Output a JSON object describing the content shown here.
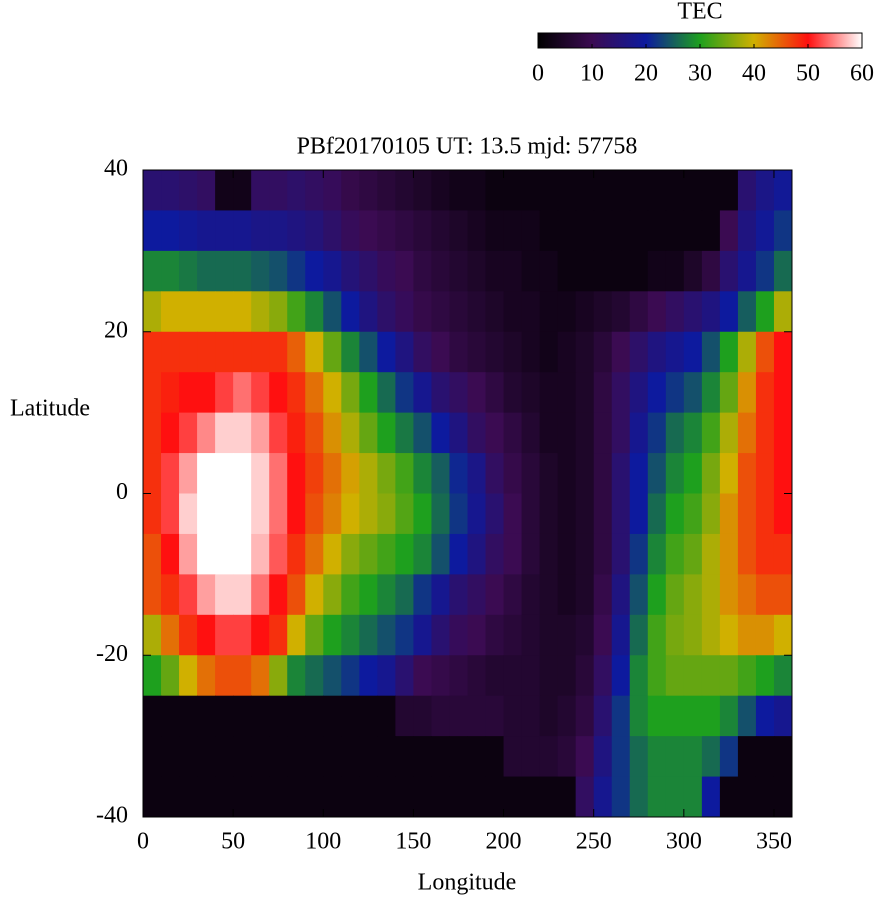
{
  "chart_data": {
    "type": "heatmap",
    "title": "PBf20170105  UT: 13.5  mjd: 57758",
    "xlabel": "Longitude",
    "ylabel": "Latitude",
    "x": [
      5,
      15,
      25,
      35,
      45,
      55,
      65,
      75,
      85,
      95,
      105,
      115,
      125,
      135,
      145,
      155,
      165,
      175,
      185,
      195,
      205,
      215,
      225,
      235,
      245,
      255,
      265,
      275,
      285,
      295,
      305,
      315,
      325,
      335,
      345,
      355
    ],
    "y": [
      37.5,
      32.5,
      27.5,
      22.5,
      17.5,
      12.5,
      7.5,
      2.5,
      -2.5,
      -7.5,
      -12.5,
      -17.5,
      -22.5,
      -27.5,
      -32.5,
      -37.5
    ],
    "z": [
      [
        14,
        14,
        13,
        12,
        3,
        3,
        12,
        12,
        13,
        12,
        11,
        9,
        8,
        7,
        6,
        5,
        4,
        3,
        3,
        2,
        2,
        2,
        2,
        2,
        2,
        2,
        2,
        2,
        2,
        2,
        2,
        2,
        2,
        14,
        17,
        19
      ],
      [
        20,
        20,
        19,
        18,
        18,
        18,
        17,
        17,
        16,
        15,
        13,
        11,
        10,
        9,
        8,
        7,
        6,
        5,
        4,
        3,
        3,
        3,
        2,
        2,
        2,
        2,
        2,
        2,
        2,
        2,
        2,
        2,
        10,
        16,
        19,
        22
      ],
      [
        28,
        28,
        27,
        26,
        26,
        26,
        25,
        24,
        22,
        20,
        18,
        15,
        13,
        11,
        10,
        8,
        7,
        6,
        5,
        4,
        4,
        3,
        3,
        2,
        2,
        2,
        2,
        2,
        3,
        3,
        5,
        8,
        14,
        18,
        22,
        26
      ],
      [
        38,
        40,
        40,
        40,
        40,
        40,
        38,
        36,
        32,
        28,
        24,
        20,
        16,
        13,
        11,
        9,
        8,
        7,
        6,
        5,
        4,
        4,
        3,
        3,
        4,
        5,
        6,
        8,
        10,
        12,
        14,
        16,
        20,
        25,
        30,
        38
      ],
      [
        48,
        48,
        48,
        48,
        48,
        48,
        48,
        48,
        45,
        40,
        34,
        28,
        24,
        20,
        16,
        12,
        10,
        8,
        7,
        6,
        5,
        4,
        3,
        4,
        5,
        7,
        10,
        13,
        16,
        18,
        20,
        24,
        30,
        38,
        46,
        50
      ],
      [
        48,
        49,
        50,
        50,
        52,
        54,
        52,
        50,
        48,
        44,
        40,
        35,
        30,
        26,
        22,
        18,
        14,
        12,
        10,
        8,
        6,
        5,
        4,
        4,
        5,
        8,
        12,
        16,
        20,
        22,
        24,
        28,
        34,
        42,
        48,
        50
      ],
      [
        48,
        50,
        52,
        55,
        58,
        58,
        56,
        52,
        49,
        46,
        42,
        38,
        34,
        30,
        27,
        24,
        20,
        16,
        12,
        10,
        8,
        6,
        4,
        4,
        5,
        8,
        12,
        18,
        22,
        26,
        28,
        32,
        38,
        44,
        48,
        50
      ],
      [
        48,
        52,
        56,
        60,
        60,
        60,
        58,
        54,
        50,
        47,
        44,
        41,
        38,
        35,
        32,
        28,
        25,
        21,
        17,
        12,
        9,
        7,
        5,
        4,
        5,
        8,
        14,
        20,
        24,
        28,
        30,
        35,
        40,
        46,
        48,
        50
      ],
      [
        48,
        52,
        58,
        60,
        60,
        60,
        58,
        54,
        50,
        46,
        43,
        40,
        38,
        36,
        33,
        30,
        26,
        22,
        18,
        14,
        10,
        7,
        5,
        4,
        5,
        8,
        14,
        20,
        26,
        30,
        32,
        36,
        42,
        46,
        48,
        50
      ],
      [
        46,
        50,
        56,
        60,
        60,
        60,
        57,
        53,
        48,
        44,
        40,
        36,
        34,
        32,
        30,
        28,
        24,
        20,
        16,
        12,
        10,
        7,
        5,
        4,
        5,
        8,
        14,
        22,
        28,
        32,
        34,
        38,
        42,
        46,
        48,
        48
      ],
      [
        46,
        48,
        52,
        56,
        58,
        58,
        54,
        50,
        46,
        40,
        36,
        32,
        30,
        28,
        26,
        22,
        18,
        14,
        12,
        10,
        8,
        6,
        5,
        4,
        5,
        9,
        16,
        24,
        30,
        34,
        36,
        38,
        42,
        44,
        46,
        46
      ],
      [
        38,
        44,
        48,
        50,
        52,
        52,
        50,
        48,
        40,
        34,
        30,
        28,
        26,
        24,
        22,
        18,
        14,
        11,
        10,
        8,
        7,
        6,
        5,
        5,
        6,
        10,
        18,
        26,
        32,
        35,
        36,
        38,
        40,
        42,
        42,
        40
      ],
      [
        30,
        34,
        40,
        44,
        46,
        46,
        44,
        36,
        28,
        26,
        24,
        22,
        20,
        18,
        14,
        10,
        9,
        8,
        7,
        6,
        6,
        6,
        5,
        5,
        7,
        12,
        20,
        28,
        32,
        34,
        34,
        34,
        34,
        32,
        30,
        28
      ],
      [
        2,
        2,
        2,
        2,
        2,
        2,
        2,
        2,
        2,
        2,
        2,
        2,
        2,
        2,
        6,
        6,
        7,
        7,
        7,
        7,
        6,
        6,
        5,
        6,
        8,
        14,
        22,
        28,
        30,
        30,
        30,
        30,
        28,
        24,
        20,
        18
      ],
      [
        2,
        2,
        2,
        2,
        2,
        2,
        2,
        2,
        2,
        2,
        2,
        2,
        2,
        2,
        2,
        2,
        2,
        2,
        2,
        2,
        6,
        6,
        6,
        7,
        10,
        16,
        22,
        26,
        28,
        28,
        28,
        26,
        22,
        2,
        2,
        2
      ],
      [
        2,
        2,
        2,
        2,
        2,
        2,
        2,
        2,
        2,
        2,
        2,
        2,
        2,
        2,
        2,
        2,
        2,
        2,
        2,
        2,
        2,
        2,
        2,
        2,
        12,
        18,
        22,
        26,
        28,
        28,
        28,
        20,
        2,
        2,
        2,
        2
      ]
    ],
    "xlim": [
      0,
      360
    ],
    "ylim": [
      -40,
      40
    ],
    "xticks": [
      0,
      50,
      100,
      150,
      200,
      250,
      300,
      350
    ],
    "yticks": [
      -40,
      -20,
      0,
      20,
      40
    ],
    "colorbar": {
      "label": "TEC",
      "lim": [
        0,
        60
      ],
      "ticks": [
        0,
        10,
        20,
        30,
        40,
        50,
        60
      ],
      "colors": [
        "#000000",
        "#3b0b52",
        "#0d1a9e",
        "#1ea01e",
        "#d0b000",
        "#ff1010",
        "#ffffff"
      ]
    }
  }
}
